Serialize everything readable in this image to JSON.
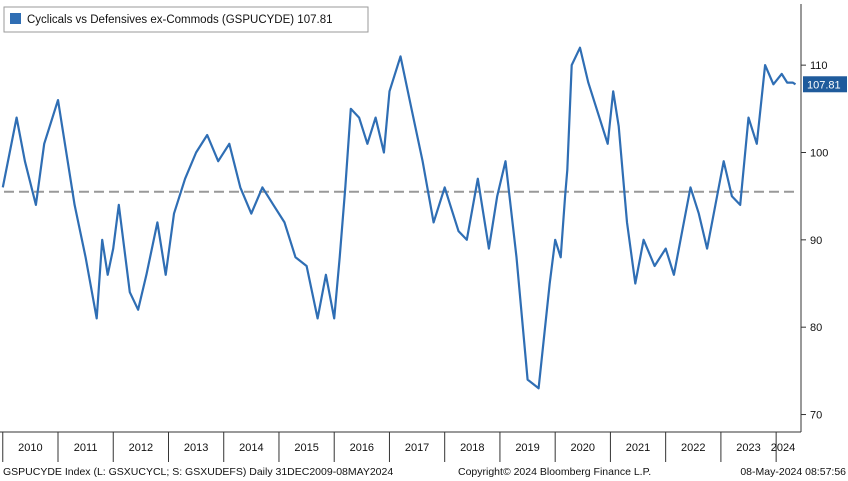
{
  "chart_data": {
    "type": "line",
    "legend": {
      "text": "Cyclicals vs Defensives ex-Commods (GSPUCYDE) 107.81",
      "placement": "top-left"
    },
    "series": [
      {
        "name": "Cyclicals vs Defensives ex-Commods (GSPUCYDE)",
        "color": "#2f6eb4",
        "x": [
          2010.0,
          2010.25,
          2010.4,
          2010.6,
          2010.75,
          2011.0,
          2011.3,
          2011.5,
          2011.7,
          2011.8,
          2011.9,
          2012.0,
          2012.1,
          2012.3,
          2012.45,
          2012.6,
          2012.8,
          2012.95,
          2013.1,
          2013.3,
          2013.5,
          2013.7,
          2013.9,
          2014.1,
          2014.3,
          2014.5,
          2014.7,
          2014.9,
          2015.1,
          2015.3,
          2015.5,
          2015.7,
          2015.85,
          2016.0,
          2016.1,
          2016.2,
          2016.3,
          2016.45,
          2016.6,
          2016.75,
          2016.9,
          2017.0,
          2017.2,
          2017.4,
          2017.6,
          2017.8,
          2018.0,
          2018.1,
          2018.25,
          2018.4,
          2018.6,
          2018.8,
          2018.95,
          2019.1,
          2019.3,
          2019.5,
          2019.7,
          2019.9,
          2020.0,
          2020.1,
          2020.18,
          2020.22,
          2020.3,
          2020.45,
          2020.6,
          2020.8,
          2020.95,
          2021.05,
          2021.15,
          2021.3,
          2021.45,
          2021.6,
          2021.8,
          2022.0,
          2022.15,
          2022.3,
          2022.45,
          2022.6,
          2022.75,
          2022.9,
          2023.05,
          2023.2,
          2023.35,
          2023.5,
          2023.65,
          2023.8,
          2023.95,
          2024.1,
          2024.2,
          2024.3,
          2024.35
        ],
        "y": [
          96,
          104,
          99,
          94,
          101,
          106,
          94,
          88,
          81,
          90,
          86,
          89,
          94,
          84,
          82,
          86,
          92,
          86,
          93,
          97,
          100,
          102,
          99,
          101,
          96,
          93,
          96,
          94,
          92,
          88,
          87,
          81,
          86,
          81,
          88,
          96,
          105,
          104,
          101,
          104,
          100,
          107,
          111,
          105,
          99,
          92,
          96,
          94,
          91,
          90,
          97,
          89,
          95,
          99,
          88,
          74,
          73,
          85,
          90,
          88,
          95,
          98,
          110,
          112,
          108,
          104,
          101,
          107,
          103,
          92,
          85,
          90,
          87,
          89,
          86,
          91,
          96,
          93,
          89,
          94,
          99,
          95,
          94,
          104,
          101,
          110,
          107.81,
          109,
          108,
          108,
          107.81
        ],
        "last_value_label": "107.81"
      }
    ],
    "reference_line": {
      "y": 95.5,
      "style": "dashed",
      "color": "#999999"
    },
    "y_axis": {
      "side": "right",
      "ticks": [
        70,
        80,
        90,
        100,
        110
      ],
      "ylim": [
        68,
        117
      ]
    },
    "x_axis": {
      "ticks": [
        "2010",
        "2011",
        "2012",
        "2013",
        "2014",
        "2015",
        "2016",
        "2017",
        "2018",
        "2019",
        "2020",
        "2021",
        "2022",
        "2023",
        "2024"
      ],
      "xlim": [
        2009.95,
        2024.45
      ]
    },
    "grid": false
  },
  "footer": {
    "left": "GSPUCYDE Index (L: GSXUCYCL; S: GSXUDEFS) Daily 31DEC2009-08MAY2024",
    "center": "Copyright© 2024 Bloomberg Finance L.P.",
    "right": "08-May-2024 08:57:56"
  },
  "colors": {
    "line": "#2f6eb4",
    "legend_swatch": "#2f6eb4",
    "last_label_bg": "#1f5b9c",
    "axis": "#333333",
    "background": "#ffffff"
  }
}
